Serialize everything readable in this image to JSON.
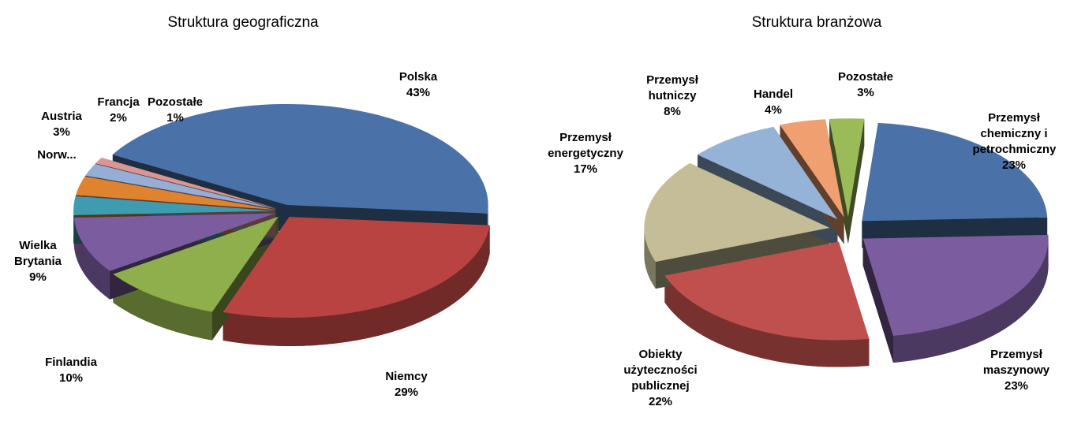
{
  "chart_data": [
    {
      "type": "pie3d",
      "title": "Struktura geograficzna",
      "categories": [
        "Polska",
        "Niemcy",
        "Finlandia",
        "Wielka Brytania",
        "Norw...",
        "Austria",
        "Francja",
        "Pozostałe"
      ],
      "values": [
        43,
        29,
        10,
        9,
        3,
        3,
        2,
        1
      ],
      "value_labels": [
        "43%",
        "29%",
        "10%",
        "9%",
        null,
        "3%",
        "2%",
        "1%"
      ],
      "colors": [
        "#4a72a8",
        "#b84340",
        "#8fae4c",
        "#7b5c9e",
        "#3e9bb0",
        "#e0832f",
        "#95aed6",
        "#d99694"
      ]
    },
    {
      "type": "pie3d",
      "title": "Struktura branżowa",
      "categories": [
        "Przemysł chemiczny i petrochmiczny",
        "Przemysł maszynowy",
        "Obiekty użyteczności publicznej",
        "Przemysł energetyczny",
        "Przemysł hutniczy",
        "Handel",
        "Pozostałe"
      ],
      "values": [
        23,
        23,
        22,
        17,
        8,
        4,
        3
      ],
      "value_labels": [
        "23%",
        "23%",
        "22%",
        "17%",
        "8%",
        "4%",
        "3%"
      ],
      "colors": [
        "#4a72a8",
        "#7b5c9e",
        "#c0504d",
        "#c4bd97",
        "#95b3d7",
        "#f0a070",
        "#9bbb59"
      ]
    }
  ]
}
